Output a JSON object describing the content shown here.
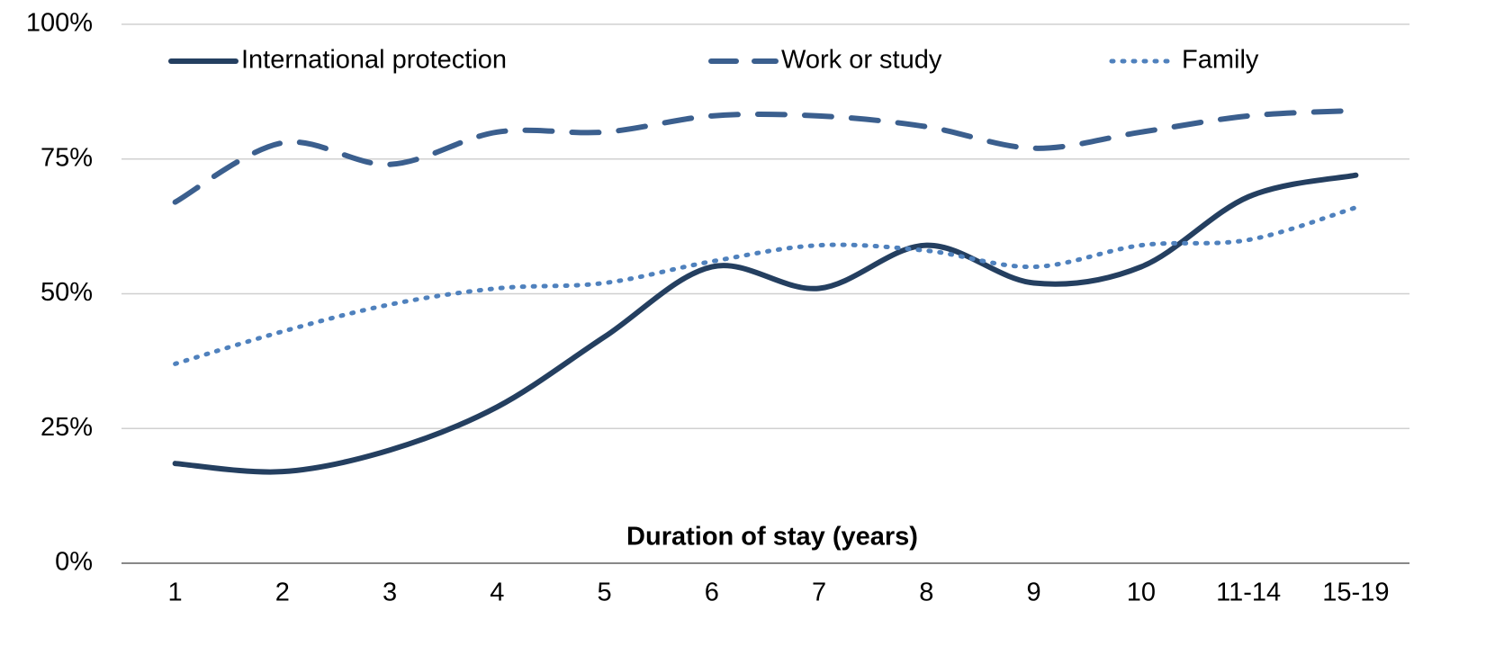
{
  "chart_data": {
    "type": "line",
    "xlabel": "Duration of stay (years)",
    "categories": [
      "1",
      "2",
      "3",
      "4",
      "5",
      "6",
      "7",
      "8",
      "9",
      "10",
      "11-14",
      "15-19"
    ],
    "series": [
      {
        "name": "International protection",
        "color": "#243f60",
        "style": "solid",
        "values": [
          18.5,
          17,
          21,
          29,
          42,
          55,
          51,
          59,
          52,
          55,
          68,
          72
        ]
      },
      {
        "name": "Work or study",
        "color": "#3b5f8e",
        "style": "dashed",
        "values": [
          67,
          78,
          74,
          80,
          80,
          83,
          83,
          81,
          77,
          80,
          83,
          84
        ]
      },
      {
        "name": "Family",
        "color": "#4f81bd",
        "style": "dotted",
        "values": [
          37,
          43,
          48,
          51,
          52,
          56,
          59,
          58,
          55,
          59,
          60,
          66
        ]
      }
    ],
    "ylim": [
      0,
      100
    ],
    "yticks": [
      {
        "value": 0,
        "label": "0%"
      },
      {
        "value": 25,
        "label": "25%"
      },
      {
        "value": 50,
        "label": "50%"
      },
      {
        "value": 75,
        "label": "75%"
      },
      {
        "value": 100,
        "label": "100%"
      }
    ],
    "grid": true,
    "legend": "top"
  }
}
